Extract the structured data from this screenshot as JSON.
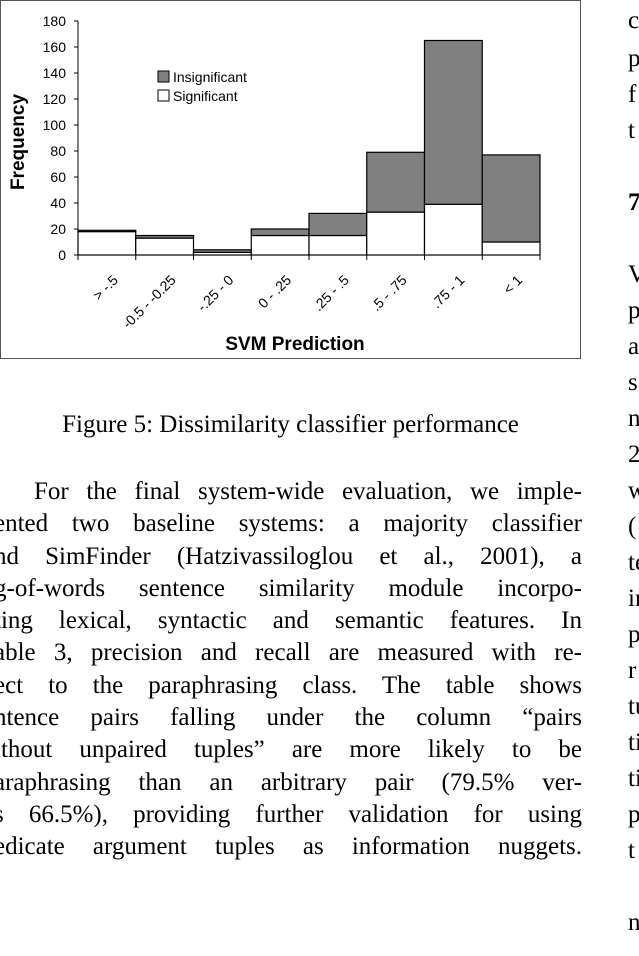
{
  "chart_data": {
    "type": "bar",
    "stacked": true,
    "xlabel": "SVM Prediction",
    "ylabel": "Frequency",
    "categories": [
      "> -.5",
      "-0.5 - -0.25",
      "-.25 - 0",
      "0 - .25",
      ".25 - .5",
      ".5 - .75",
      ".75 - 1",
      "< 1"
    ],
    "series": [
      {
        "name": "Significant",
        "values": [
          18,
          13,
          2,
          15,
          15,
          33,
          39,
          10
        ],
        "color": "#ffffff"
      },
      {
        "name": "Insignificant",
        "values": [
          1,
          2,
          2,
          5,
          17,
          46,
          126,
          67
        ],
        "color": "#808080"
      }
    ],
    "legend_order": [
      "Insignificant",
      "Significant"
    ],
    "ylim": [
      0,
      180
    ],
    "yticks": [
      0,
      20,
      40,
      60,
      80,
      100,
      120,
      140,
      160,
      180
    ],
    "legend_position": "upper-center",
    "grid": false
  },
  "caption": "Figure 5: Dissimilarity classifier performance",
  "body_lines": [
    "For the final system-wide evaluation, we imple-",
    "ented two baseline systems: a majority classifier",
    "nd SimFinder (Hatzivassiloglou et al., 2001), a",
    "g-of-words sentence similarity module incorpo-",
    "ting lexical, syntactic and semantic features. In",
    "able 3, precision and recall are measured with re-",
    "ect to the paraphrasing class. The table shows",
    "ntence pairs falling under the column “pairs",
    "ithout unpaired tuples” are more likely to be",
    "araphrasing than an arbitrary pair (79.5% ver-",
    "s 66.5%), providing further validation for using",
    "edicate argument tuples as information nuggets."
  ],
  "right_column_fragments": [
    "c",
    "p",
    "f",
    "t",
    "7",
    "V",
    "p",
    "a",
    "s",
    "n",
    "2",
    "w",
    "(",
    "te",
    "in",
    "p",
    "r",
    "tu",
    "ti",
    "ti",
    "p",
    "t",
    "n"
  ]
}
